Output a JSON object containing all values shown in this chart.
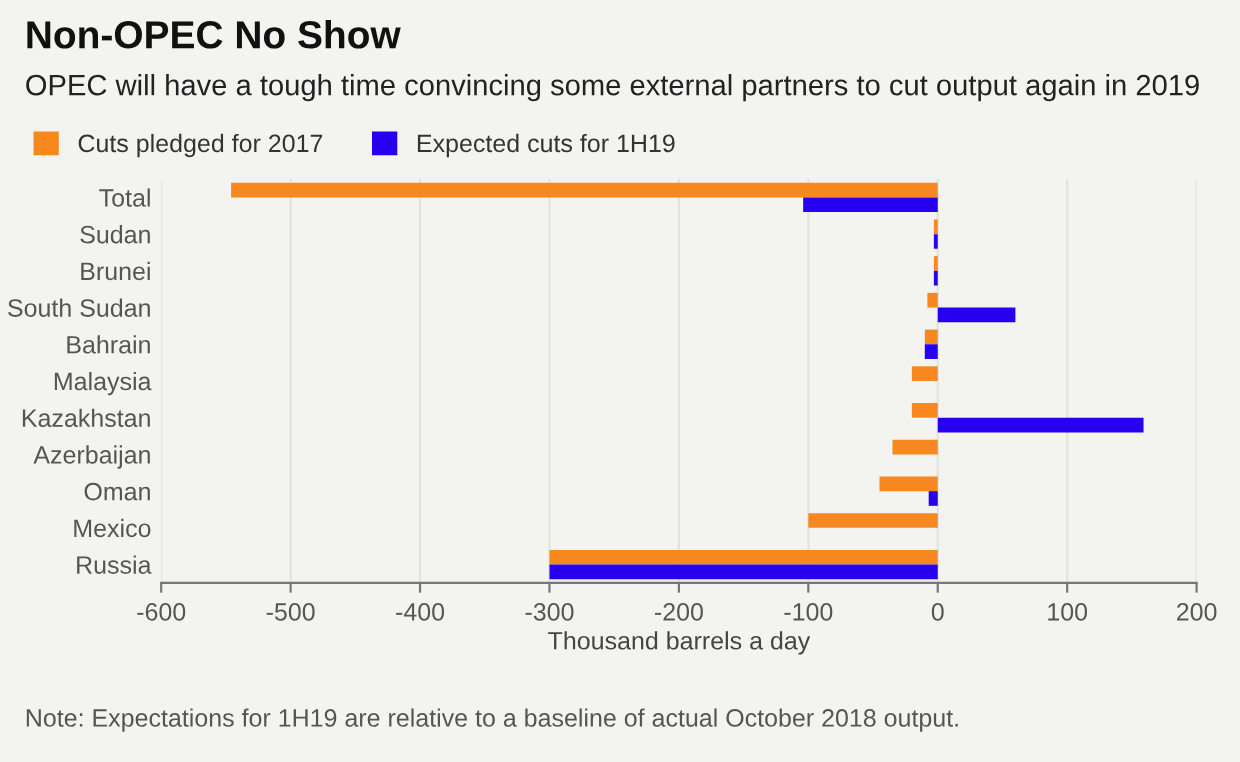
{
  "chart_data": {
    "type": "bar",
    "orientation": "horizontal",
    "title": "Non-OPEC No Show",
    "subtitle": "OPEC will have a tough time convincing some external partners to cut output again in 2019",
    "categories": [
      "Total",
      "Sudan",
      "Brunei",
      "South Sudan",
      "Bahrain",
      "Malaysia",
      "Kazakhstan",
      "Azerbaijan",
      "Oman",
      "Mexico",
      "Russia"
    ],
    "series": [
      {
        "name": "Cuts pledged for 2017",
        "color": "#f7881f",
        "values": [
          -546,
          -3,
          -3,
          -8,
          -10,
          -20,
          -20,
          -35,
          -45,
          -100,
          -300
        ]
      },
      {
        "name": "Expected cuts for 1H19",
        "color": "#2800f0",
        "values": [
          -104,
          -3,
          -3,
          60,
          -10,
          null,
          159,
          null,
          -7,
          null,
          -300
        ]
      }
    ],
    "xlabel": "Thousand barrels a day",
    "xlim": [
      -600,
      200
    ],
    "xticks": [
      -600,
      -500,
      -400,
      -300,
      -200,
      -100,
      0,
      100,
      200
    ],
    "grid": "x",
    "legend": "top left",
    "annotations": [
      "Note: Expectations for 1H19 are relative to a baseline of actual October 2018 output."
    ]
  }
}
